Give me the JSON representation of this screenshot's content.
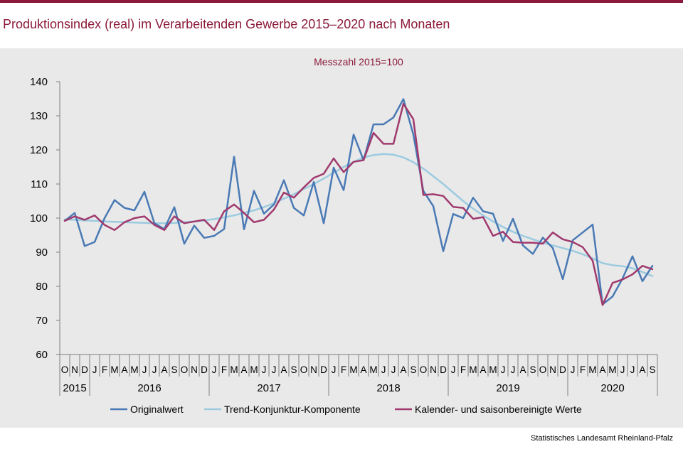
{
  "header": {
    "title": "Produktionsindex (real) im Verarbeitenden Gewerbe 2015–2020 nach Monaten"
  },
  "footer": {
    "source": "Statistisches Landesamt Rheinland-Pfalz"
  },
  "colors": {
    "accent": "#8b1a3a",
    "original": "#4a7ab5",
    "trend": "#9ccbe0",
    "seasonal": "#a03a6e",
    "background": "#e9e9e9"
  },
  "chart_data": {
    "type": "line",
    "subtitle": "Messzahl 2015=100",
    "ylim": [
      60,
      140
    ],
    "yticks": [
      60,
      70,
      80,
      90,
      100,
      110,
      120,
      130,
      140
    ],
    "grid": false,
    "legend_position": "bottom",
    "x_months": [
      "O",
      "N",
      "D",
      "J",
      "F",
      "M",
      "A",
      "M",
      "J",
      "J",
      "A",
      "S",
      "O",
      "N",
      "D",
      "J",
      "F",
      "M",
      "A",
      "M",
      "J",
      "J",
      "A",
      "S",
      "O",
      "N",
      "D",
      "J",
      "F",
      "M",
      "A",
      "M",
      "J",
      "J",
      "A",
      "S",
      "O",
      "N",
      "D",
      "J",
      "F",
      "M",
      "A",
      "M",
      "J",
      "J",
      "A",
      "S",
      "O",
      "N",
      "D",
      "J",
      "F",
      "M",
      "A",
      "M",
      "J",
      "J",
      "A",
      "S"
    ],
    "year_groups": [
      {
        "label": "2015",
        "count": 3
      },
      {
        "label": "2016",
        "count": 12
      },
      {
        "label": "2017",
        "count": 12
      },
      {
        "label": "2018",
        "count": 12
      },
      {
        "label": "2019",
        "count": 12
      },
      {
        "label": "2020",
        "count": 9
      }
    ],
    "series": [
      {
        "name": "Originalwert",
        "color": "#4a7ab5",
        "values": [
          99.2,
          101.5,
          91.8,
          93.0,
          100.0,
          105.3,
          103.0,
          102.3,
          107.7,
          98.5,
          96.8,
          103.2,
          92.5,
          97.8,
          94.2,
          94.8,
          96.8,
          118.0,
          96.7,
          108.0,
          101.3,
          104.0,
          111.1,
          103.0,
          100.8,
          110.6,
          98.5,
          114.8,
          108.2,
          124.5,
          117.0,
          127.5,
          127.5,
          129.5,
          134.9,
          124.5,
          108.0,
          103.5,
          90.3,
          101.2,
          100.0,
          106.0,
          102.0,
          101.3,
          93.3,
          99.8,
          92.0,
          89.5,
          94.3,
          91.2,
          82.1,
          93.5,
          95.8,
          98.1,
          74.7,
          77.0,
          82.3,
          88.8,
          81.5,
          86.0
        ]
      },
      {
        "name": "Trend-Konjunktur-Komponente",
        "color": "#9ccbe0",
        "values": [
          99.6,
          99.5,
          99.3,
          99.2,
          99.0,
          98.9,
          98.8,
          98.7,
          98.6,
          98.5,
          98.5,
          98.6,
          98.8,
          99.0,
          99.3,
          99.7,
          100.2,
          100.8,
          101.5,
          102.3,
          103.2,
          104.4,
          105.7,
          107.0,
          108.5,
          110.0,
          111.6,
          113.3,
          115.0,
          116.5,
          117.8,
          118.5,
          118.8,
          118.6,
          117.8,
          116.4,
          114.5,
          112.3,
          110.0,
          107.5,
          105.0,
          102.8,
          100.8,
          99.0,
          97.4,
          96.0,
          94.8,
          93.8,
          92.8,
          92.0,
          91.2,
          90.4,
          89.4,
          88.2,
          86.8,
          86.2,
          85.9,
          85.3,
          84.2,
          83.0
        ]
      },
      {
        "name": "Kalender- und saisonbereinigte Werte",
        "color": "#a03a6e",
        "values": [
          99.2,
          100.5,
          99.5,
          100.8,
          98.0,
          96.5,
          98.8,
          100.0,
          100.5,
          98.0,
          96.5,
          100.5,
          98.5,
          99.0,
          99.5,
          96.5,
          102.0,
          104.0,
          101.5,
          98.8,
          99.5,
          102.5,
          107.5,
          106.0,
          109.0,
          111.8,
          113.0,
          117.5,
          113.5,
          116.5,
          117.0,
          125.0,
          121.8,
          121.8,
          133.5,
          129.0,
          106.8,
          107.0,
          106.5,
          103.3,
          103.0,
          99.8,
          100.3,
          94.8,
          96.0,
          93.0,
          92.8,
          92.8,
          92.5,
          95.8,
          93.8,
          93.0,
          91.5,
          87.5,
          74.5,
          81.0,
          82.0,
          83.5,
          86.0,
          85.0
        ]
      }
    ]
  }
}
